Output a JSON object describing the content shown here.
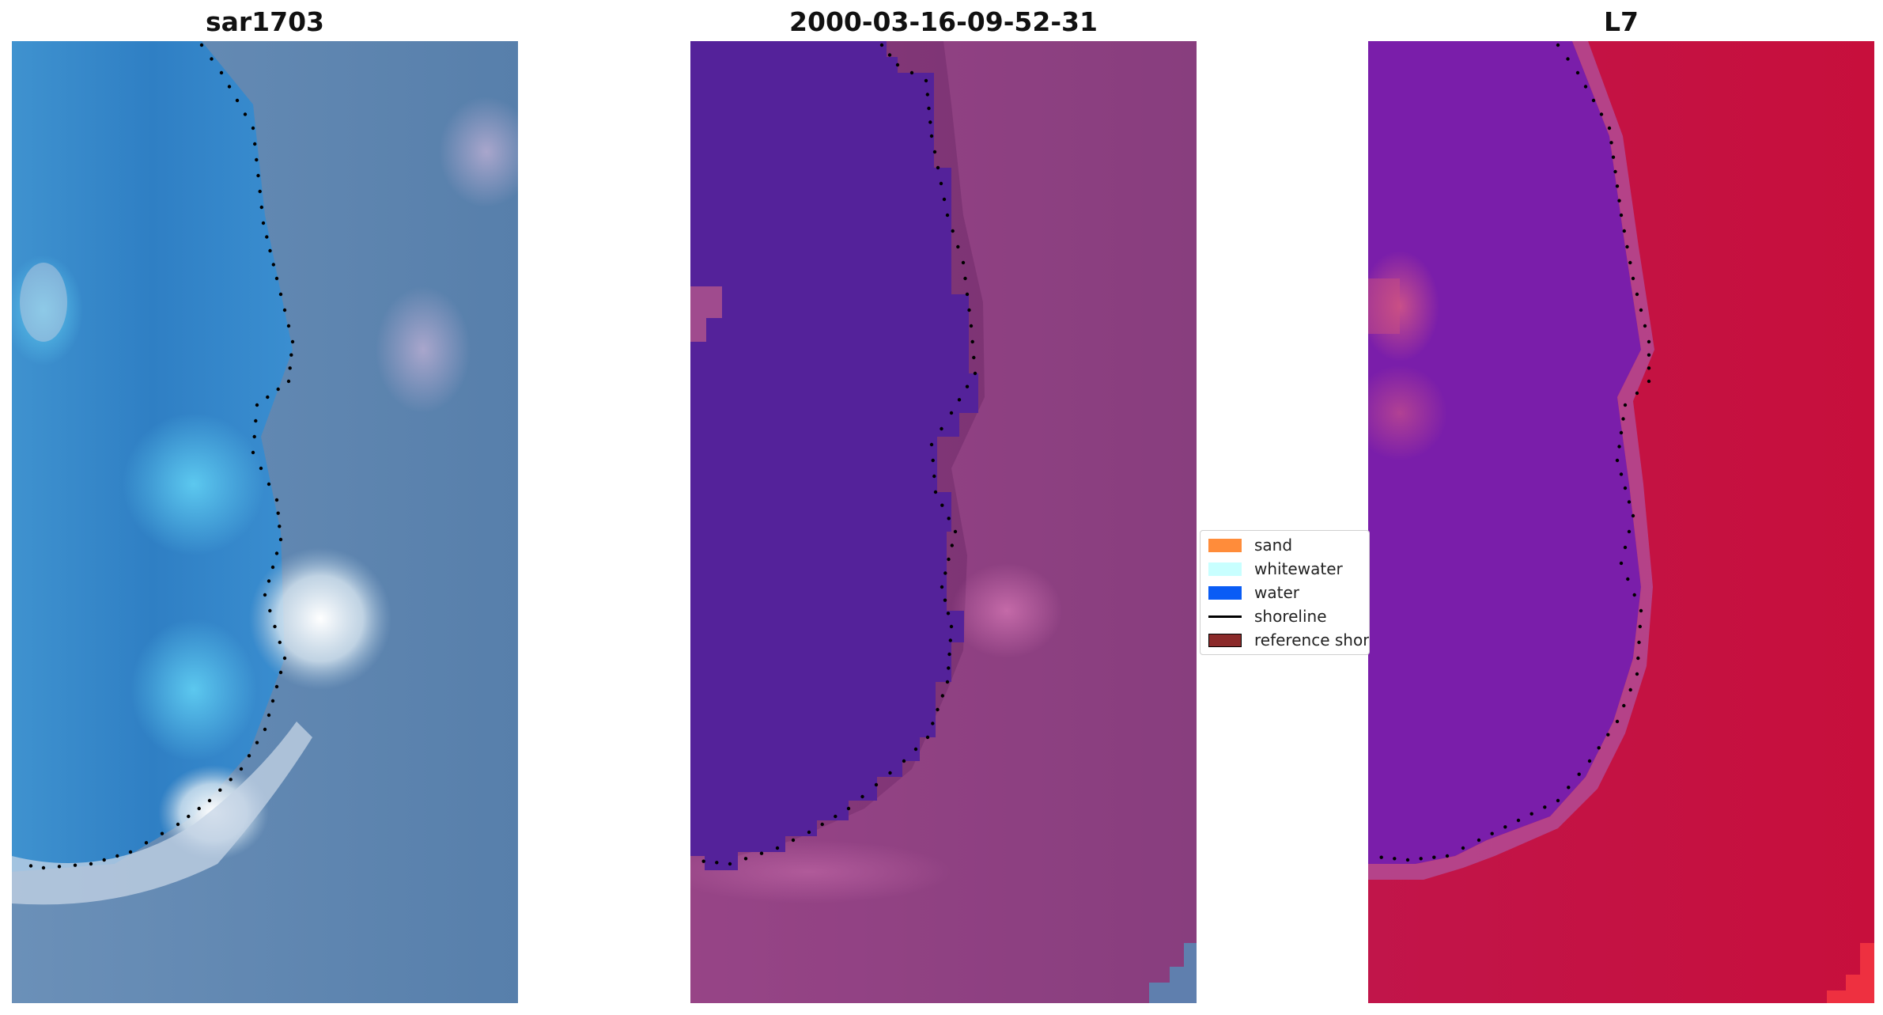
{
  "panels": [
    {
      "title": "sar1703",
      "kind": "rgb"
    },
    {
      "title": "2000-03-16-09-52-31",
      "kind": "classified"
    },
    {
      "title": "L7",
      "kind": "ndwi"
    }
  ],
  "legend": {
    "items": [
      {
        "label": "sand",
        "type": "patch",
        "color": "#ff8c3a"
      },
      {
        "label": "whitewater",
        "type": "patch",
        "color": "#c8ffff"
      },
      {
        "label": "water",
        "type": "patch",
        "color": "#0a5cf5"
      },
      {
        "label": "shoreline",
        "type": "line",
        "color": "#000000"
      },
      {
        "label": "reference shoreline",
        "type": "patch",
        "color": "#8b2a2a"
      }
    ]
  },
  "colors": {
    "rgb_water": "#3a85c8",
    "rgb_land": "#5b84b0",
    "class_water": "#54229a",
    "class_land": "#7a3270",
    "ndwi_water": "#7a1eaa",
    "ndwi_land": "#c4113f",
    "shoreline_dots": "#000000"
  }
}
